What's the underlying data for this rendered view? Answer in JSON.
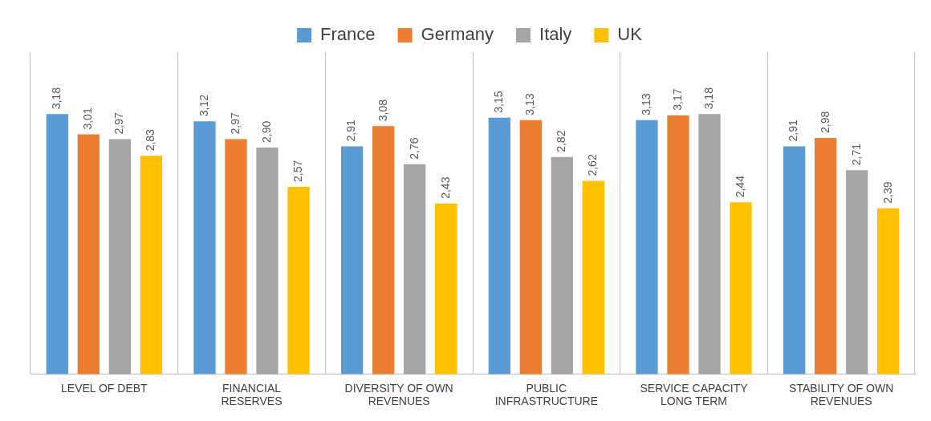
{
  "chart_data": {
    "type": "bar",
    "categories": [
      "LEVEL OF DEBT",
      "FINANCIAL RESERVES",
      "DIVERSITY OF OWN REVENUES",
      "PUBLIC INFRASTRUCTURE",
      "SERVICE CAPACITY LONG TERM",
      "STABILITY OF OWN REVENUES"
    ],
    "series": [
      {
        "name": "France",
        "color": "#5b9bd5",
        "values": [
          3.18,
          3.12,
          2.91,
          3.15,
          3.13,
          2.91
        ],
        "value_labels": [
          "3,18",
          "3,12",
          "2,91",
          "3,15",
          "3,13",
          "2,91"
        ]
      },
      {
        "name": "Germany",
        "color": "#ed7d31",
        "values": [
          3.01,
          2.97,
          3.08,
          3.13,
          3.17,
          2.98
        ],
        "value_labels": [
          "3,01",
          "2,97",
          "3,08",
          "3,13",
          "3,17",
          "2,98"
        ]
      },
      {
        "name": "Italy",
        "color": "#a5a5a5",
        "values": [
          2.97,
          2.9,
          2.76,
          2.82,
          3.18,
          2.71
        ],
        "value_labels": [
          "2,97",
          "2,90",
          "2,76",
          "2,82",
          "3,18",
          "2,71"
        ]
      },
      {
        "name": "UK",
        "color": "#ffc000",
        "values": [
          2.83,
          2.57,
          2.43,
          2.62,
          2.44,
          2.39
        ],
        "value_labels": [
          "2,83",
          "2,57",
          "2,43",
          "2,62",
          "2,44",
          "2,39"
        ]
      }
    ],
    "ylim": [
      1,
      3.7
    ],
    "tick_labels": "x",
    "grid": "x",
    "legend": "top"
  }
}
